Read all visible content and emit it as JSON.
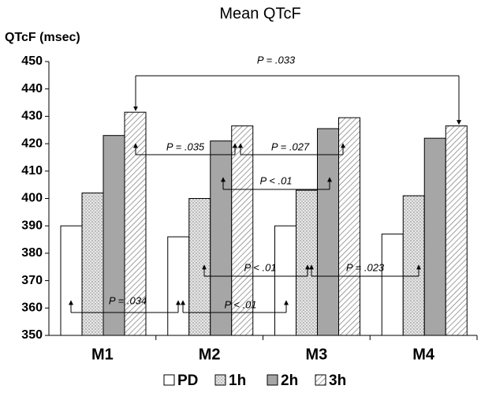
{
  "chart_data": {
    "type": "bar",
    "title": "Mean QTcF",
    "ylabel": "QTcF (msec)",
    "categories": [
      "M1",
      "M2",
      "M3",
      "M4"
    ],
    "series": [
      {
        "name": "PD",
        "color": "#ffffff",
        "values": [
          390,
          386,
          390,
          387
        ]
      },
      {
        "name": "1h",
        "color": "#e6e6e6",
        "pattern": "dots",
        "values": [
          402,
          400,
          403,
          401
        ]
      },
      {
        "name": "2h",
        "color": "#a6a6a6",
        "values": [
          423,
          421,
          425.5,
          422
        ]
      },
      {
        "name": "3h",
        "color": "#ffffff",
        "pattern": "hatch",
        "values": [
          431.5,
          426.5,
          429.5,
          426.5
        ]
      }
    ],
    "ylim": [
      350,
      450
    ],
    "yticks": [
      350,
      360,
      370,
      380,
      390,
      400,
      410,
      420,
      430,
      440,
      450
    ],
    "annotations": [
      "P = .033",
      "P = .035",
      "P = .027",
      "P < .01",
      "P < .01",
      "P = .023",
      "P = .034",
      "P < .01"
    ]
  }
}
